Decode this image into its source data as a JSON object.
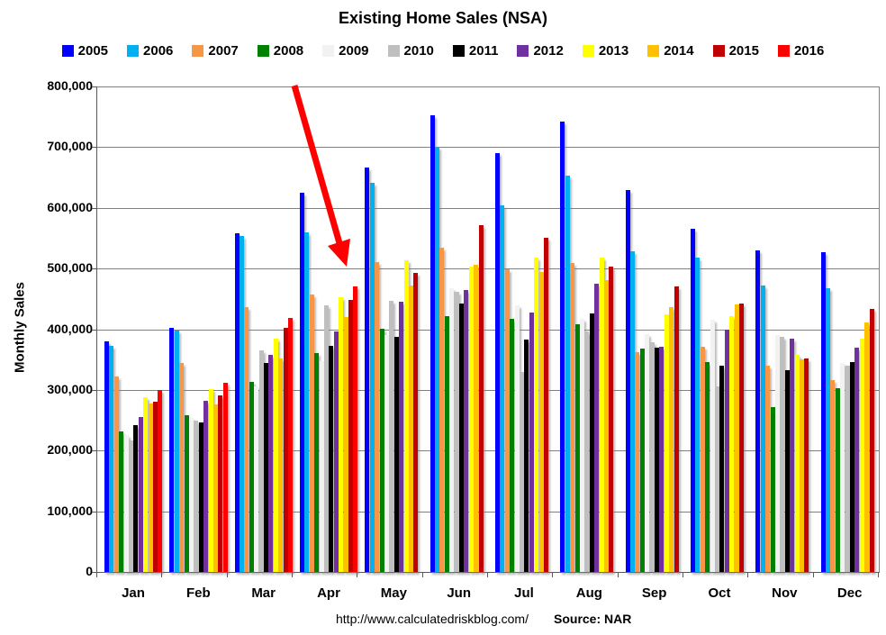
{
  "chart_data": {
    "type": "bar",
    "title": "Existing Home Sales (NSA)",
    "ylabel": "Monthly Sales",
    "ylim": [
      0,
      800000
    ],
    "ytick_step": 100000,
    "grid": "horizontal",
    "legend_position": "top",
    "categories": [
      "Jan",
      "Feb",
      "Mar",
      "Apr",
      "May",
      "Jun",
      "Jul",
      "Aug",
      "Sep",
      "Oct",
      "Nov",
      "Dec"
    ],
    "series": [
      {
        "name": "2005",
        "color": "#0000FF",
        "values": [
          380000,
          402000,
          558000,
          625000,
          667000,
          753000,
          690000,
          742000,
          630000,
          565000,
          530000,
          527000
        ]
      },
      {
        "name": "2006",
        "color": "#00B0F0",
        "values": [
          372000,
          398000,
          554000,
          560000,
          641000,
          700000,
          604000,
          653000,
          528000,
          518000,
          472000,
          468000
        ]
      },
      {
        "name": "2007",
        "color": "#F79646",
        "values": [
          322000,
          345000,
          436000,
          457000,
          510000,
          535000,
          498000,
          509000,
          362000,
          371000,
          340000,
          316000
        ]
      },
      {
        "name": "2008",
        "color": "#008000",
        "values": [
          232000,
          258000,
          313000,
          360000,
          401000,
          421000,
          417000,
          408000,
          368000,
          346000,
          272000,
          303000
        ]
      },
      {
        "name": "2009",
        "color": "#F2F2F2",
        "values": [
          226000,
          254000,
          306000,
          348000,
          391000,
          468000,
          440000,
          417000,
          392000,
          415000,
          391000,
          344000
        ]
      },
      {
        "name": "2010",
        "color": "#BFBFBF",
        "values": [
          216000,
          250000,
          365000,
          440000,
          447000,
          462000,
          330000,
          396000,
          378000,
          306000,
          388000,
          340000
        ]
      },
      {
        "name": "2011",
        "color": "#000000",
        "values": [
          242000,
          246000,
          345000,
          372000,
          387000,
          442000,
          383000,
          426000,
          369000,
          340000,
          333000,
          346000
        ]
      },
      {
        "name": "2012",
        "color": "#7030A0",
        "values": [
          256000,
          282000,
          357000,
          397000,
          445000,
          464000,
          428000,
          475000,
          371000,
          399000,
          384000,
          370000
        ]
      },
      {
        "name": "2013",
        "color": "#FFFF00",
        "values": [
          288000,
          302000,
          384000,
          452000,
          513000,
          503000,
          518000,
          518000,
          425000,
          422000,
          358000,
          384000
        ]
      },
      {
        "name": "2014",
        "color": "#FFC000",
        "values": [
          278000,
          276000,
          352000,
          420000,
          472000,
          506000,
          495000,
          481000,
          437000,
          441000,
          350000,
          411000
        ]
      },
      {
        "name": "2015",
        "color": "#C00000",
        "values": [
          280000,
          291000,
          402000,
          448000,
          493000,
          572000,
          550000,
          503000,
          470000,
          443000,
          352000,
          434000
        ]
      },
      {
        "name": "2016",
        "color": "#FF0000",
        "values": [
          300000,
          312000,
          419000,
          470000,
          null,
          null,
          null,
          null,
          null,
          null,
          null,
          null
        ]
      }
    ],
    "annotation": {
      "type": "arrow",
      "color": "#FF0000",
      "points_to": "Apr 2016 bar"
    },
    "footer": {
      "url": "http://www.calculatedriskblog.com/",
      "source": "Source: NAR"
    }
  }
}
